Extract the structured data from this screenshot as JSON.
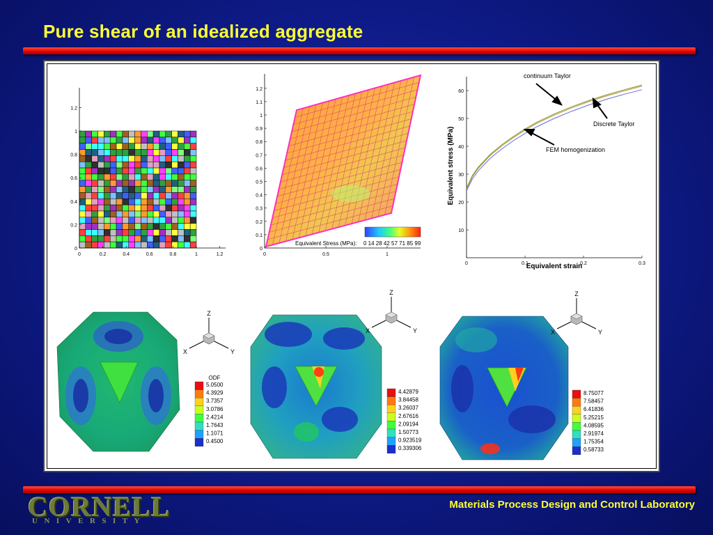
{
  "slide": {
    "title": "Pure shear of an idealized aggregate",
    "footer_lab": "Materials Process Design and Control Laboratory",
    "logo_main": "CORNELL",
    "logo_sub": "UNIVERSITY"
  },
  "colors": {
    "title": "#ffff33",
    "bar": "#e00000",
    "background": "#0e1a86"
  },
  "grid_plot": {
    "xticks": [
      "0",
      "0.2",
      "0.4",
      "0.6",
      "0.8",
      "1",
      "1.2"
    ],
    "yticks": [
      "0",
      "0.2",
      "0.4",
      "0.6",
      "0.8",
      "1",
      "1.2"
    ]
  },
  "shear_plot": {
    "xticks": [
      "0",
      "0.5",
      "1"
    ],
    "yticks": [
      "0",
      "0.1",
      "0.2",
      "0.3",
      "0.4",
      "0.5",
      "0.6",
      "0.7",
      "0.8",
      "0.9",
      "1",
      "1.1",
      "1.2"
    ],
    "legend_title": "Equivalent Stress (MPa):",
    "legend_values": "0  14 28 42 57 71 85 99"
  },
  "chart_data": {
    "type": "line",
    "xlabel": "Equivalent strain",
    "ylabel": "Equivalent stress (MPa)",
    "xlim": [
      0,
      0.3
    ],
    "ylim": [
      0,
      65
    ],
    "xticks": [
      "0",
      "0.1",
      "0.2",
      "0.3"
    ],
    "yticks": [
      "10",
      "20",
      "30",
      "40",
      "50",
      "60"
    ],
    "x": [
      0,
      0.01,
      0.02,
      0.04,
      0.06,
      0.08,
      0.1,
      0.12,
      0.15,
      0.18,
      0.21,
      0.24,
      0.27,
      0.3
    ],
    "series": [
      {
        "name": "continuum Taylor",
        "color": "#7a9a20",
        "values": [
          25,
          29.5,
          32.5,
          37,
          40.5,
          43.5,
          46.2,
          48.6,
          51.6,
          54.2,
          56.5,
          58.5,
          60.3,
          62
        ]
      },
      {
        "name": "Discrete Taylor",
        "color": "#c08a30",
        "values": [
          24.6,
          29.1,
          32.1,
          36.6,
          40.1,
          43.1,
          45.8,
          48.2,
          51.2,
          53.8,
          56.1,
          58.1,
          59.9,
          61.6
        ]
      },
      {
        "name": "FEM homogenization",
        "color": "#5a6ee0",
        "values": [
          24,
          28.3,
          31.2,
          35.6,
          39,
          42,
          44.6,
          47,
          50,
          52.6,
          54.9,
          56.9,
          58.7,
          60.3
        ]
      }
    ],
    "annotations": [
      "continuum Taylor",
      "Discrete Taylor",
      "FEM homogenization"
    ]
  },
  "odf_panels": [
    {
      "title": "ODF",
      "values": [
        "5.0500",
        "4.3929",
        "3.7357",
        "3.0786",
        "2.4214",
        "1.7643",
        "1.1071",
        "0.4500"
      ]
    },
    {
      "title": "",
      "values": [
        "4.42879",
        "3.84458",
        "3.26037",
        "2.67616",
        "2.09194",
        "1.50773",
        "0.923519",
        "0.339306"
      ]
    },
    {
      "title": "",
      "values": [
        "8.75077",
        "7.58457",
        "6.41836",
        "5.25215",
        "4.08595",
        "2.91974",
        "1.75354",
        "0.58733"
      ]
    }
  ],
  "axes_triad": {
    "z": "Z",
    "x": "X",
    "y": "Y"
  }
}
